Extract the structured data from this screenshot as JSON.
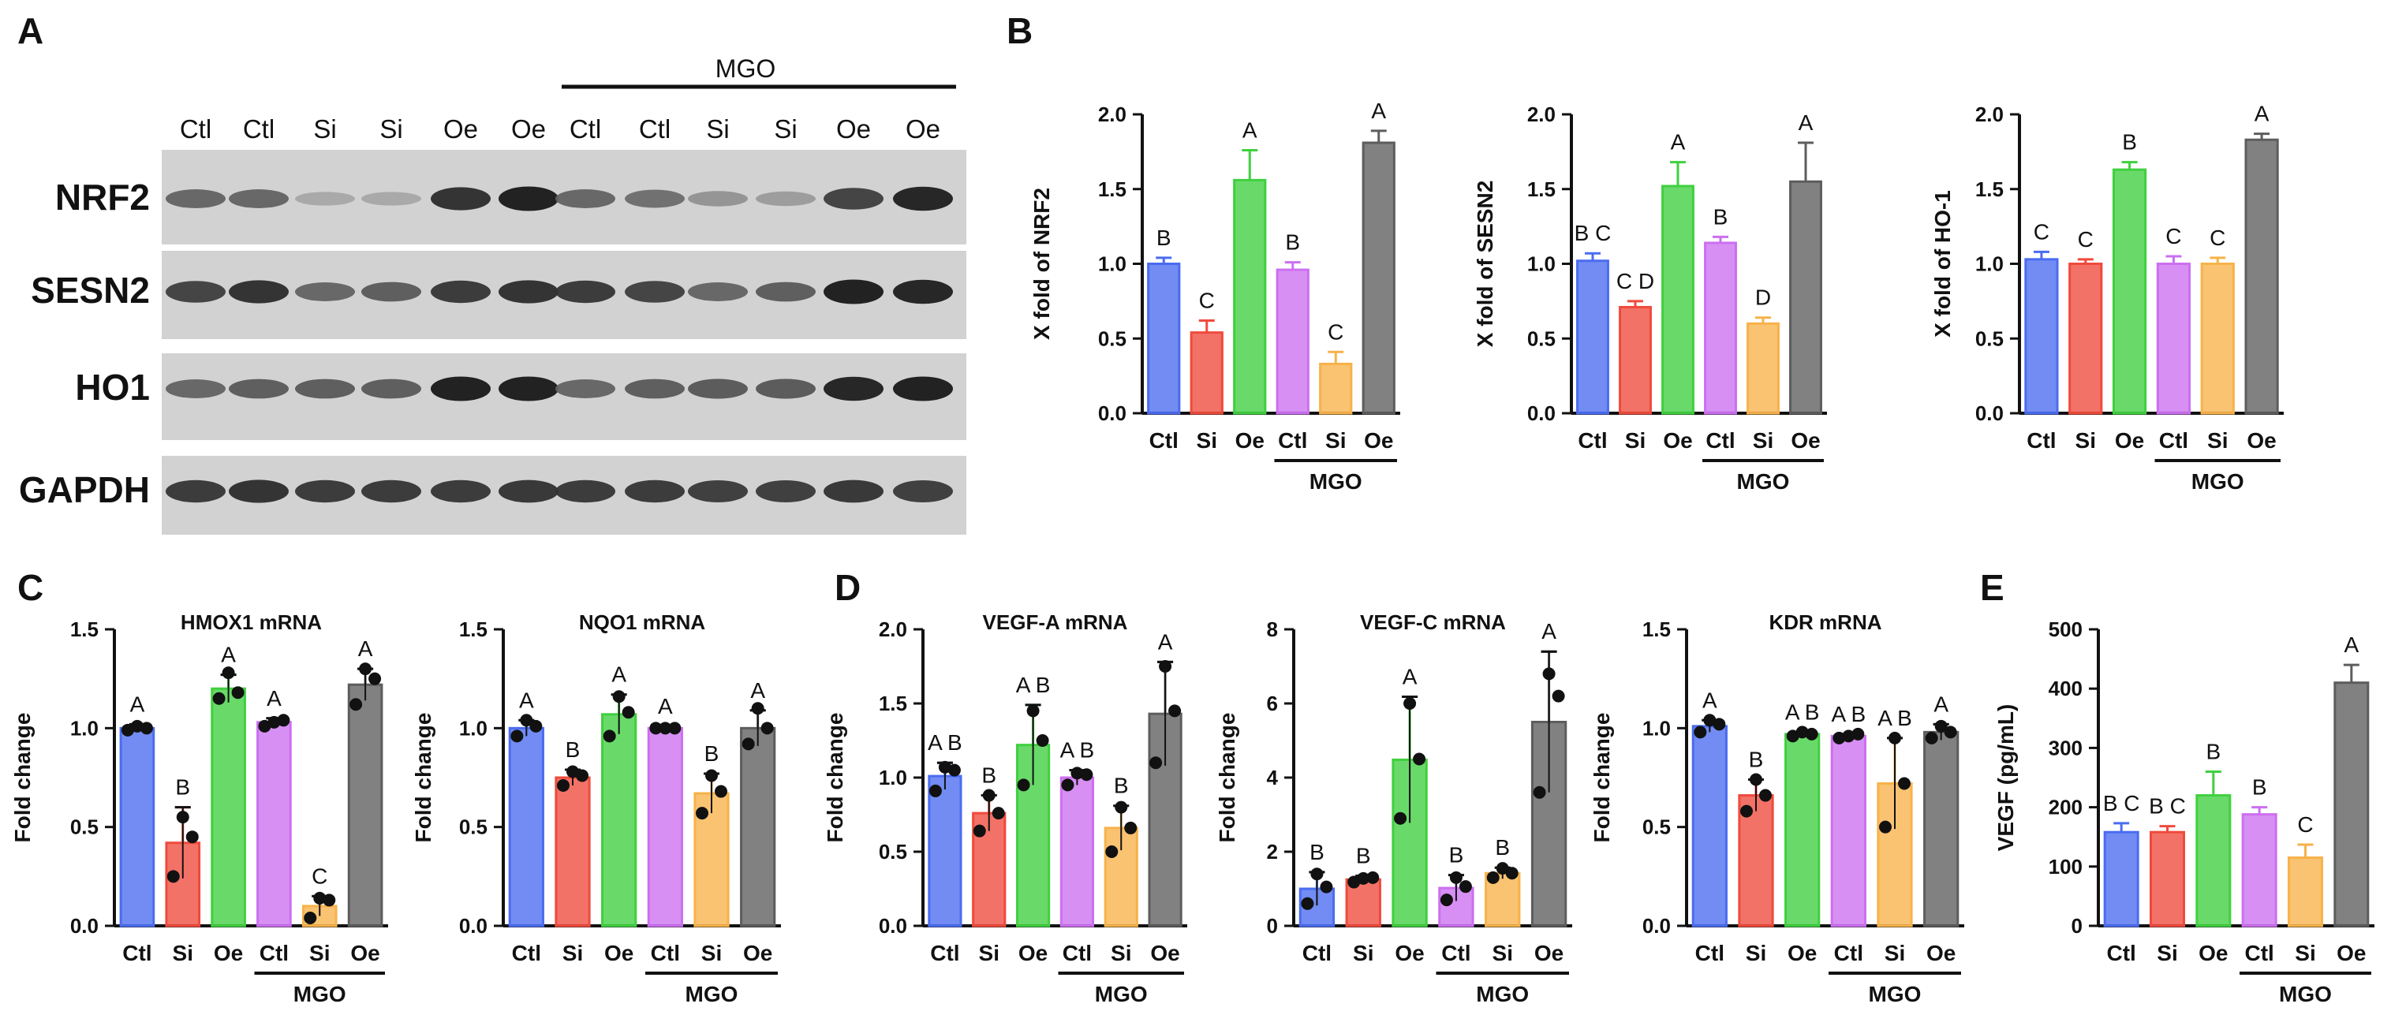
{
  "panels": {
    "A": "A",
    "B": "B",
    "C": "C",
    "D": "D",
    "E": "E"
  },
  "colors": {
    "Ctl": "#4a6cf0",
    "Si": "#ef4a3c",
    "Oe": "#3fd03f",
    "MGO_Ctl": "#cc6ff0",
    "MGO_Si": "#f7b24a",
    "MGO_Oe": "#5d5d5d",
    "text": "#111111"
  },
  "western_blot": {
    "mgo_label": "MGO",
    "lanes": [
      "Ctl",
      "Ctl",
      "Si",
      "Si",
      "Oe",
      "Oe",
      "Ctl",
      "Ctl",
      "Si",
      "Si",
      "Oe",
      "Oe"
    ],
    "proteins": [
      "NRF2",
      "SESN2",
      "HO1",
      "GAPDH"
    ],
    "band_intensity": {
      "NRF2": [
        0.55,
        0.55,
        0.18,
        0.18,
        0.85,
        0.95,
        0.55,
        0.5,
        0.3,
        0.25,
        0.75,
        0.92
      ],
      "SESN2": [
        0.75,
        0.85,
        0.55,
        0.6,
        0.8,
        0.85,
        0.8,
        0.75,
        0.55,
        0.6,
        0.95,
        0.92
      ],
      "HO1": [
        0.55,
        0.6,
        0.6,
        0.6,
        0.95,
        0.95,
        0.55,
        0.6,
        0.62,
        0.62,
        0.92,
        0.95
      ],
      "GAPDH": [
        0.8,
        0.85,
        0.8,
        0.8,
        0.8,
        0.82,
        0.8,
        0.8,
        0.78,
        0.78,
        0.82,
        0.78
      ]
    }
  },
  "chart_data": [
    {
      "id": "nrf2",
      "type": "bar",
      "panel": "B",
      "title": "",
      "ylabel": "X fold of NRF2",
      "xlabel": "",
      "categories": [
        "Ctl",
        "Si",
        "Oe",
        "Ctl",
        "Si",
        "Oe"
      ],
      "group_label": "MGO",
      "values": [
        1.0,
        0.54,
        1.56,
        0.96,
        0.33,
        1.81
      ],
      "errors": [
        0.04,
        0.08,
        0.2,
        0.05,
        0.08,
        0.08
      ],
      "letters": [
        "B",
        "C",
        "A",
        "B",
        "C",
        "A"
      ],
      "ylim": [
        0,
        2.0
      ],
      "yticks": [
        "0.0",
        "0.5",
        "1.0",
        "1.5",
        "2.0"
      ],
      "points": null
    },
    {
      "id": "sesn2",
      "type": "bar",
      "panel": "B",
      "title": "",
      "ylabel": "X fold of SESN2",
      "xlabel": "",
      "categories": [
        "Ctl",
        "Si",
        "Oe",
        "Ctl",
        "Si",
        "Oe"
      ],
      "group_label": "MGO",
      "values": [
        1.02,
        0.71,
        1.52,
        1.14,
        0.6,
        1.55
      ],
      "errors": [
        0.05,
        0.04,
        0.16,
        0.04,
        0.04,
        0.26
      ],
      "letters": [
        "B C",
        "C D",
        "A",
        "B",
        "D",
        "A"
      ],
      "ylim": [
        0,
        2.0
      ],
      "yticks": [
        "0.0",
        "0.5",
        "1.0",
        "1.5",
        "2.0"
      ],
      "points": null
    },
    {
      "id": "ho1",
      "type": "bar",
      "panel": "B",
      "title": "",
      "ylabel": "X fold of HO-1",
      "xlabel": "",
      "categories": [
        "Ctl",
        "Si",
        "Oe",
        "Ctl",
        "Si",
        "Oe"
      ],
      "group_label": "MGO",
      "values": [
        1.03,
        1.0,
        1.63,
        1.0,
        1.0,
        1.83
      ],
      "errors": [
        0.05,
        0.03,
        0.05,
        0.05,
        0.04,
        0.04
      ],
      "letters": [
        "C",
        "C",
        "B",
        "C",
        "C",
        "A"
      ],
      "ylim": [
        0,
        2.0
      ],
      "yticks": [
        "0.0",
        "0.5",
        "1.0",
        "1.5",
        "2.0"
      ],
      "points": null
    },
    {
      "id": "hmox1",
      "type": "bar",
      "panel": "C",
      "title": "HMOX1 mRNA",
      "ylabel": "Fold change",
      "xlabel": "",
      "categories": [
        "Ctl",
        "Si",
        "Oe",
        "Ctl",
        "Si",
        "Oe"
      ],
      "group_label": "MGO",
      "values": [
        1.0,
        0.42,
        1.2,
        1.03,
        0.1,
        1.22
      ],
      "errors": [
        0.02,
        0.18,
        0.07,
        0.02,
        0.05,
        0.08
      ],
      "letters": [
        "A",
        "B",
        "A",
        "A",
        "C",
        "A"
      ],
      "ylim": [
        0,
        1.5
      ],
      "yticks": [
        "0.0",
        "0.5",
        "1.0",
        "1.5"
      ],
      "points": [
        [
          0.99,
          1.01,
          1.0
        ],
        [
          0.25,
          0.55,
          0.45
        ],
        [
          1.15,
          1.28,
          1.18
        ],
        [
          1.01,
          1.03,
          1.04
        ],
        [
          0.04,
          0.14,
          0.13
        ],
        [
          1.12,
          1.3,
          1.25
        ]
      ]
    },
    {
      "id": "nqo1",
      "type": "bar",
      "panel": "C",
      "title": "NQO1 mRNA",
      "ylabel": "Fold change",
      "xlabel": "",
      "categories": [
        "Ctl",
        "Si",
        "Oe",
        "Ctl",
        "Si",
        "Oe"
      ],
      "group_label": "MGO",
      "values": [
        1.0,
        0.75,
        1.07,
        1.0,
        0.67,
        1.0
      ],
      "errors": [
        0.04,
        0.04,
        0.1,
        0.01,
        0.1,
        0.09
      ],
      "letters": [
        "A",
        "B",
        "A",
        "A",
        "B",
        "A"
      ],
      "ylim": [
        0,
        1.5
      ],
      "yticks": [
        "0.0",
        "0.5",
        "1.0",
        "1.5"
      ],
      "points": [
        [
          0.96,
          1.04,
          1.01
        ],
        [
          0.71,
          0.78,
          0.76
        ],
        [
          0.96,
          1.16,
          1.08
        ],
        [
          1.0,
          1.0,
          1.0
        ],
        [
          0.57,
          0.76,
          0.68
        ],
        [
          0.92,
          1.1,
          1.0
        ]
      ]
    },
    {
      "id": "vegfa",
      "type": "bar",
      "panel": "D",
      "title": "VEGF-A mRNA",
      "ylabel": "Fold change",
      "xlabel": "",
      "categories": [
        "Ctl",
        "Si",
        "Oe",
        "Ctl",
        "Si",
        "Oe"
      ],
      "group_label": "MGO",
      "values": [
        1.01,
        0.76,
        1.22,
        1.0,
        0.66,
        1.43
      ],
      "errors": [
        0.09,
        0.12,
        0.27,
        0.05,
        0.15,
        0.35
      ],
      "letters": [
        "A B",
        "B",
        "A B",
        "A B",
        "B",
        "A"
      ],
      "ylim": [
        0,
        2.0
      ],
      "yticks": [
        "0.0",
        "0.5",
        "1.0",
        "1.5",
        "2.0"
      ],
      "points": [
        [
          0.91,
          1.07,
          1.05
        ],
        [
          0.64,
          0.88,
          0.76
        ],
        [
          0.95,
          1.45,
          1.25
        ],
        [
          0.95,
          1.03,
          1.02
        ],
        [
          0.5,
          0.8,
          0.66
        ],
        [
          1.1,
          1.75,
          1.45
        ]
      ]
    },
    {
      "id": "vegfc",
      "type": "bar",
      "panel": "D",
      "title": "VEGF-C mRNA",
      "ylabel": "Fold change",
      "xlabel": "",
      "categories": [
        "Ctl",
        "Si",
        "Oe",
        "Ctl",
        "Si",
        "Oe"
      ],
      "group_label": "MGO",
      "values": [
        1.0,
        1.25,
        4.48,
        1.02,
        1.42,
        5.5
      ],
      "errors": [
        0.45,
        0.1,
        1.7,
        0.35,
        0.15,
        1.9
      ],
      "letters": [
        "B",
        "B",
        "A",
        "B",
        "B",
        "A"
      ],
      "ylim": [
        0,
        8
      ],
      "yticks": [
        "0",
        "2",
        "4",
        "6",
        "8"
      ],
      "points": [
        [
          0.6,
          1.4,
          1.05
        ],
        [
          1.18,
          1.28,
          1.3
        ],
        [
          2.9,
          6.0,
          4.5
        ],
        [
          0.7,
          1.3,
          1.06
        ],
        [
          1.3,
          1.55,
          1.42
        ],
        [
          3.6,
          6.8,
          6.2
        ]
      ]
    },
    {
      "id": "kdr",
      "type": "bar",
      "panel": "D",
      "title": "KDR mRNA",
      "ylabel": "Fold change",
      "xlabel": "",
      "categories": [
        "Ctl",
        "Si",
        "Oe",
        "Ctl",
        "Si",
        "Oe"
      ],
      "group_label": "MGO",
      "values": [
        1.01,
        0.66,
        0.97,
        0.96,
        0.72,
        0.98
      ],
      "errors": [
        0.03,
        0.08,
        0.01,
        0.01,
        0.23,
        0.04
      ],
      "letters": [
        "A",
        "B",
        "A B",
        "A B",
        "A B",
        "A"
      ],
      "ylim": [
        0,
        1.5
      ],
      "yticks": [
        "0.0",
        "0.5",
        "1.0",
        "1.5"
      ],
      "points": [
        [
          0.98,
          1.04,
          1.02
        ],
        [
          0.58,
          0.74,
          0.66
        ],
        [
          0.96,
          0.98,
          0.97
        ],
        [
          0.95,
          0.96,
          0.97
        ],
        [
          0.5,
          0.95,
          0.72
        ],
        [
          0.95,
          1.01,
          0.98
        ]
      ]
    },
    {
      "id": "vegf-protein",
      "type": "bar",
      "panel": "E",
      "title": "",
      "ylabel": "VEGF (pg/mL)",
      "xlabel": "",
      "categories": [
        "Ctl",
        "Si",
        "Oe",
        "Ctl",
        "Si",
        "Oe"
      ],
      "group_label": "MGO",
      "values": [
        158,
        158,
        220,
        188,
        115,
        410
      ],
      "errors": [
        15,
        10,
        40,
        12,
        22,
        30
      ],
      "letters": [
        "B C",
        "B C",
        "B",
        "B",
        "C",
        "A"
      ],
      "ylim": [
        0,
        500
      ],
      "yticks": [
        "0",
        "100",
        "200",
        "300",
        "400",
        "500"
      ],
      "points": null
    }
  ]
}
